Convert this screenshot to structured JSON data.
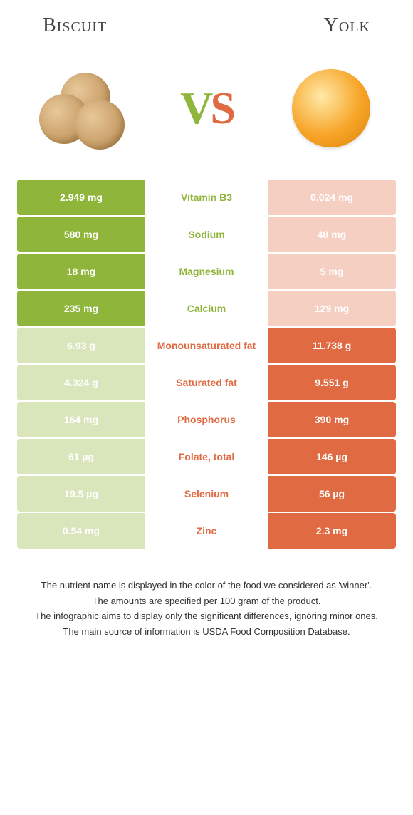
{
  "header": {
    "left_title": "Biscuit",
    "right_title": "Yolk",
    "vs_v": "V",
    "vs_s": "S"
  },
  "colors": {
    "biscuit_winner": "#8fb53a",
    "biscuit_loser": "#d9e6bc",
    "yolk_winner": "#e06a42",
    "yolk_loser": "#f5cfc2",
    "text_on_color": "#ffffff"
  },
  "rows": [
    {
      "left": "2.949 mg",
      "label": "Vitamin B3",
      "right": "0.024 mg",
      "winner": "biscuit"
    },
    {
      "left": "580 mg",
      "label": "Sodium",
      "right": "48 mg",
      "winner": "biscuit"
    },
    {
      "left": "18 mg",
      "label": "Magnesium",
      "right": "5 mg",
      "winner": "biscuit"
    },
    {
      "left": "235 mg",
      "label": "Calcium",
      "right": "129 mg",
      "winner": "biscuit"
    },
    {
      "left": "6.93 g",
      "label": "Monounsaturated fat",
      "right": "11.738 g",
      "winner": "yolk"
    },
    {
      "left": "4.324 g",
      "label": "Saturated fat",
      "right": "9.551 g",
      "winner": "yolk"
    },
    {
      "left": "164 mg",
      "label": "Phosphorus",
      "right": "390 mg",
      "winner": "yolk"
    },
    {
      "left": "61 µg",
      "label": "Folate, total",
      "right": "146 µg",
      "winner": "yolk"
    },
    {
      "left": "19.5 µg",
      "label": "Selenium",
      "right": "56 µg",
      "winner": "yolk"
    },
    {
      "left": "0.54 mg",
      "label": "Zinc",
      "right": "2.3 mg",
      "winner": "yolk"
    }
  ],
  "footnotes": [
    "The nutrient name is displayed in the color of the food we considered as 'winner'.",
    "The amounts are specified per 100 gram of the product.",
    "The infographic aims to display only the significant differences, ignoring minor ones.",
    "The main source of information is USDA Food Composition Database."
  ]
}
